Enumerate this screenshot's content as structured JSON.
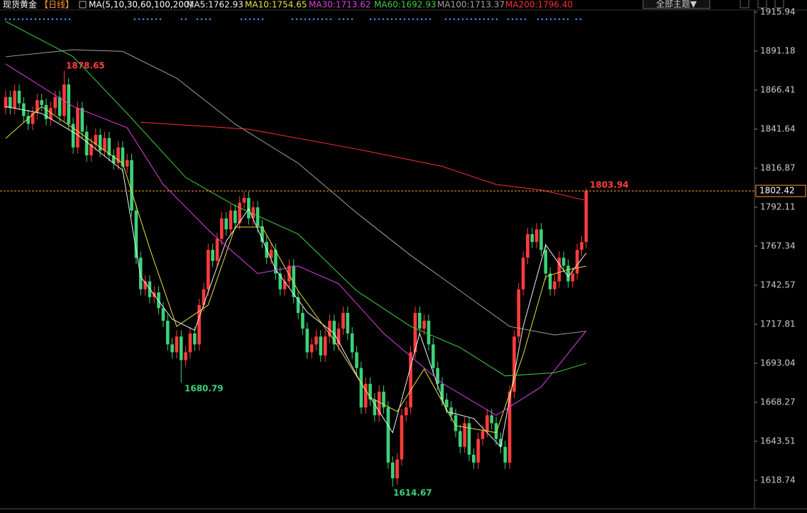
{
  "chart_data": {
    "type": "candlestick",
    "title": "现货黄金",
    "period": "【日线】",
    "indicator": "MA(5,10,30,60,100,200)",
    "theme_button": "全部主题▼",
    "up_color": "#ff3c3c",
    "down_color": "#3cd278",
    "ylim": [
      1601.6,
      1923.6
    ],
    "yticks": [
      1915.94,
      1891.18,
      1866.41,
      1841.64,
      1816.87,
      1792.11,
      1767.34,
      1742.57,
      1717.81,
      1693.04,
      1668.27,
      1643.51,
      1618.74
    ],
    "last_price": 1802.42,
    "last_price_color": "#ff9a2e",
    "annotations": {
      "high": "1878.65",
      "low1": "1680.79",
      "low2": "1614.67",
      "latest_high": "1803.94"
    },
    "open": [
      1855,
      1862,
      1855,
      1866,
      1858,
      1850,
      1845,
      1852,
      1860,
      1857,
      1848,
      1855,
      1862,
      1850,
      1870,
      1845,
      1830,
      1855,
      1840,
      1825,
      1832,
      1838,
      1828,
      1836,
      1825,
      1820,
      1830,
      1818,
      1822,
      1790,
      1760,
      1740,
      1745,
      1735,
      1738,
      1728,
      1720,
      1705,
      1700,
      1710,
      1695,
      1700,
      1712,
      1705,
      1730,
      1740,
      1765,
      1758,
      1772,
      1785,
      1778,
      1790,
      1782,
      1795,
      1798,
      1785,
      1792,
      1780,
      1770,
      1760,
      1765,
      1750,
      1740,
      1745,
      1755,
      1735,
      1725,
      1715,
      1700,
      1705,
      1710,
      1698,
      1710,
      1720,
      1705,
      1715,
      1725,
      1712,
      1700,
      1690,
      1665,
      1680,
      1670,
      1660,
      1675,
      1665,
      1630,
      1620,
      1632,
      1660,
      1665,
      1700,
      1725,
      1715,
      1720,
      1705,
      1690,
      1680,
      1670,
      1665,
      1660,
      1650,
      1640,
      1655,
      1635,
      1630,
      1645,
      1650,
      1660,
      1655,
      1645,
      1640,
      1630,
      1675,
      1710,
      1740,
      1760,
      1775,
      1770,
      1778,
      1765,
      1750,
      1740,
      1745,
      1760,
      1755,
      1745,
      1750,
      1765,
      1770
    ],
    "high": [
      1866,
      1866,
      1870,
      1870,
      1862,
      1854,
      1856,
      1864,
      1864,
      1861,
      1859,
      1866,
      1866,
      1878.65,
      1874,
      1849,
      1859,
      1859,
      1844,
      1836,
      1842,
      1842,
      1840,
      1840,
      1829,
      1834,
      1834,
      1826,
      1826,
      1794,
      1764,
      1749,
      1749,
      1742,
      1742,
      1732,
      1724,
      1709,
      1714,
      1714,
      1704,
      1716,
      1716,
      1734,
      1744,
      1769,
      1769,
      1776,
      1789,
      1789,
      1794,
      1794,
      1799,
      1802,
      1802,
      1796,
      1796,
      1784,
      1774,
      1769,
      1769,
      1754,
      1749,
      1759,
      1759,
      1739,
      1729,
      1719,
      1709,
      1714,
      1714,
      1714,
      1724,
      1724,
      1719,
      1729,
      1729,
      1716,
      1704,
      1694,
      1684,
      1684,
      1674,
      1679,
      1679,
      1669,
      1634,
      1636,
      1664,
      1669,
      1704,
      1729,
      1729,
      1724,
      1724,
      1709,
      1694,
      1684,
      1674,
      1669,
      1664,
      1654,
      1659,
      1659,
      1639,
      1649,
      1654,
      1664,
      1664,
      1659,
      1649,
      1644,
      1679,
      1714,
      1744,
      1764,
      1779,
      1779,
      1782,
      1782,
      1769,
      1754,
      1749,
      1764,
      1764,
      1759,
      1754,
      1769,
      1774,
      1803.94
    ],
    "low": [
      1851,
      1851,
      1851,
      1854,
      1846,
      1841,
      1841,
      1848,
      1853,
      1844,
      1844,
      1851,
      1846,
      1846,
      1841,
      1826,
      1826,
      1836,
      1821,
      1821,
      1828,
      1824,
      1824,
      1821,
      1816,
      1816,
      1814,
      1814,
      1786,
      1756,
      1736,
      1736,
      1731,
      1731,
      1724,
      1716,
      1701,
      1696,
      1696,
      1680.79,
      1691,
      1696,
      1701,
      1701,
      1726,
      1736,
      1754,
      1754,
      1768,
      1774,
      1774,
      1778,
      1778,
      1791,
      1781,
      1781,
      1776,
      1766,
      1756,
      1756,
      1746,
      1736,
      1736,
      1741,
      1731,
      1721,
      1711,
      1696,
      1696,
      1701,
      1694,
      1694,
      1706,
      1701,
      1701,
      1711,
      1708,
      1696,
      1686,
      1661,
      1661,
      1666,
      1656,
      1656,
      1661,
      1626,
      1614.67,
      1616,
      1628,
      1656,
      1661,
      1696,
      1711,
      1711,
      1701,
      1686,
      1676,
      1666,
      1661,
      1656,
      1646,
      1636,
      1636,
      1631,
      1626,
      1626,
      1641,
      1646,
      1651,
      1641,
      1636,
      1626,
      1626,
      1671,
      1706,
      1736,
      1756,
      1766,
      1766,
      1761,
      1746,
      1736,
      1736,
      1741,
      1751,
      1741,
      1741,
      1746,
      1761,
      1766
    ],
    "close": [
      1862,
      1855,
      1866,
      1858,
      1850,
      1845,
      1852,
      1860,
      1857,
      1848,
      1855,
      1862,
      1850,
      1870,
      1845,
      1830,
      1855,
      1840,
      1825,
      1832,
      1838,
      1828,
      1836,
      1825,
      1820,
      1830,
      1818,
      1822,
      1790,
      1760,
      1740,
      1745,
      1735,
      1738,
      1728,
      1720,
      1705,
      1700,
      1710,
      1695,
      1700,
      1712,
      1705,
      1730,
      1740,
      1765,
      1758,
      1772,
      1785,
      1778,
      1790,
      1782,
      1795,
      1798,
      1785,
      1792,
      1780,
      1770,
      1760,
      1765,
      1750,
      1740,
      1745,
      1755,
      1735,
      1725,
      1715,
      1700,
      1705,
      1710,
      1698,
      1710,
      1720,
      1705,
      1715,
      1725,
      1712,
      1700,
      1690,
      1665,
      1680,
      1670,
      1660,
      1675,
      1665,
      1630,
      1620,
      1632,
      1660,
      1665,
      1700,
      1725,
      1715,
      1720,
      1705,
      1690,
      1680,
      1670,
      1665,
      1660,
      1650,
      1640,
      1655,
      1635,
      1630,
      1645,
      1650,
      1660,
      1655,
      1645,
      1640,
      1630,
      1675,
      1710,
      1740,
      1760,
      1775,
      1770,
      1778,
      1765,
      1750,
      1740,
      1745,
      1760,
      1755,
      1745,
      1750,
      1765,
      1770,
      1802.42
    ],
    "series": [
      {
        "name": "MA5:1762.93",
        "color": "#f0f0f0",
        "x": [
          0,
          8,
          16,
          26,
          30,
          37,
          42,
          49,
          54,
          60,
          67,
          73,
          79,
          86,
          92,
          98,
          104,
          110,
          115,
          120,
          125,
          129
        ],
        "values": [
          1856,
          1851.6,
          1838,
          1815.5,
          1748,
          1721,
          1714,
          1770.5,
          1791,
          1752.5,
          1725.5,
          1712,
          1680.4,
          1649,
          1712,
          1662.4,
          1658,
          1640,
          1716.4,
          1768.2,
          1748,
          1762.93
        ]
      },
      {
        "name": "MA10:1754.65",
        "color": "#e8e040",
        "x": [
          0,
          8,
          16,
          26,
          32,
          38,
          45,
          51,
          57,
          65,
          73,
          81,
          87,
          93,
          100,
          109,
          115,
          120,
          125,
          129
        ],
        "values": [
          1835.8,
          1856,
          1840.3,
          1820,
          1766,
          1716.4,
          1730,
          1779.5,
          1779.5,
          1739,
          1707.5,
          1671.4,
          1662.4,
          1689.4,
          1653.4,
          1649,
          1698.5,
          1748,
          1752.5,
          1754.65
        ]
      },
      {
        "name": "MA30:1713.62",
        "color": "#e040e0",
        "x": [
          0,
          15,
          27,
          35,
          46,
          56,
          65,
          74,
          84,
          97,
          109,
          119,
          129
        ],
        "values": [
          1883,
          1856,
          1842.5,
          1806.5,
          1775,
          1750,
          1754.7,
          1743.5,
          1712,
          1680.4,
          1660,
          1678,
          1713.62
        ]
      },
      {
        "name": "MA60:1692.93",
        "color": "#40d040",
        "x": [
          0,
          15,
          27,
          40,
          51,
          65,
          78,
          90,
          101,
          111,
          122,
          129
        ],
        "values": [
          1910,
          1887.6,
          1851.6,
          1811,
          1793,
          1775,
          1739,
          1716.4,
          1703,
          1685,
          1687,
          1692.93
        ]
      },
      {
        "name": "MA100:1713.37",
        "color": "#a0a0a0",
        "x": [
          0,
          15,
          26,
          38,
          51,
          65,
          78,
          90,
          101,
          112,
          122,
          129
        ],
        "values": [
          1887.6,
          1892,
          1891,
          1874,
          1844.8,
          1820,
          1788.5,
          1761.5,
          1739,
          1716.4,
          1711,
          1713.37
        ]
      },
      {
        "name": "MA200:1796.40",
        "color": "#ff3030",
        "x": [
          30,
          54,
          78,
          97,
          109,
          119,
          129
        ],
        "values": [
          1846,
          1841.6,
          1829,
          1818,
          1806.5,
          1803,
          1796.4
        ]
      }
    ]
  }
}
